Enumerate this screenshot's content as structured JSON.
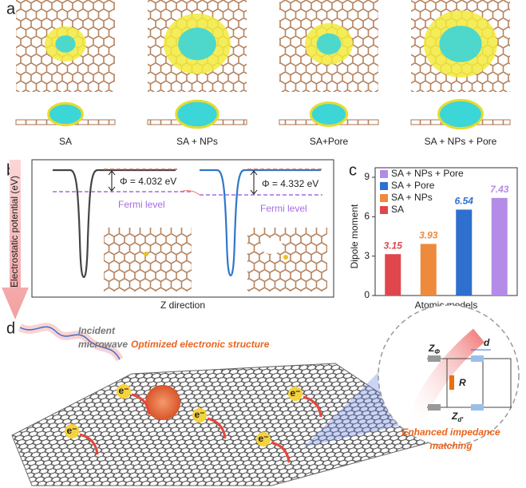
{
  "panel_labels": [
    "a",
    "b",
    "c",
    "d"
  ],
  "panel_a": {
    "labels": [
      "SA",
      "SA + NPs",
      "SA+Pore",
      "SA + NPs + Pore"
    ]
  },
  "panel_b": {
    "y_label": "Electrostatic potential (eV)",
    "x_label": "Z direction",
    "work_functions": [
      {
        "label": "Φ = 4.032 eV",
        "fermi": "Fermi level"
      },
      {
        "label": "Φ = 4.332 eV",
        "fermi": "Fermi level"
      }
    ]
  },
  "chart_data": {
    "type": "bar",
    "x_label": "Atomic models",
    "y_label": "Dipole moment",
    "categories": [
      null
    ],
    "series": [
      {
        "name": "SA",
        "color": "#e0474c",
        "values": [
          3.15
        ]
      },
      {
        "name": "SA + NPs",
        "color": "#ee8a3c",
        "values": [
          3.93
        ]
      },
      {
        "name": "SA + Pore",
        "color": "#2f6fce",
        "values": [
          6.54
        ]
      },
      {
        "name": "SA + NPs + Pore",
        "color": "#b48be6",
        "values": [
          7.43
        ]
      }
    ],
    "ylim": [
      0,
      9
    ],
    "yticks": [
      0,
      3,
      6,
      9
    ],
    "legend": "upper left"
  },
  "panel_d": {
    "incident": [
      "Incident",
      "microwave"
    ],
    "title": "Optimized electronic structure",
    "electron": "e⁻",
    "inset": {
      "z_phi": {
        "main": "Z",
        "sub": "Φ"
      },
      "d": "d",
      "r": "R",
      "z_d": {
        "main": "Z",
        "sub": "d'"
      },
      "caption": [
        "Enhanced impedance",
        "matching"
      ]
    }
  }
}
